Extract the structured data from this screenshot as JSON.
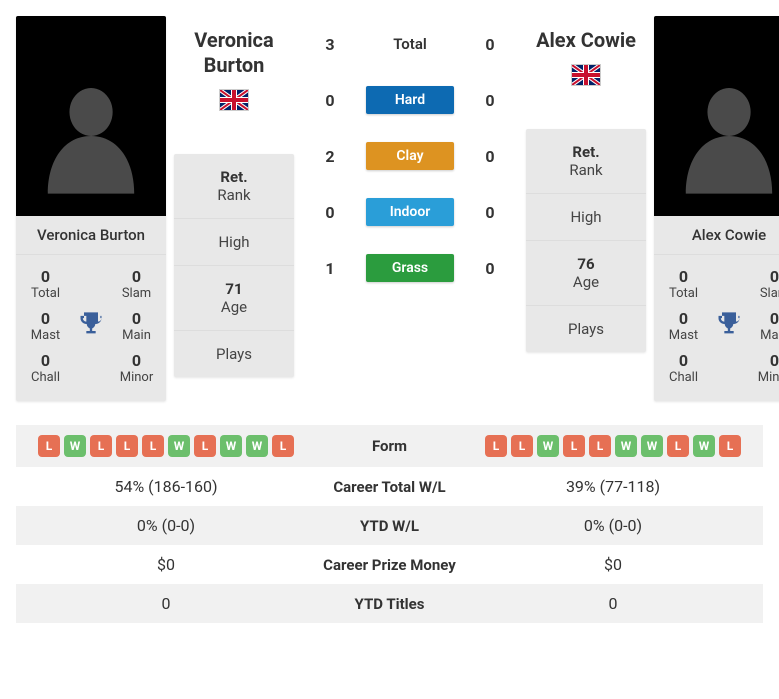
{
  "colors": {
    "card_bg": "#e8e8e8",
    "hard": "#0d6ab2",
    "clay": "#dd9321",
    "indoor": "#2a9ed8",
    "grass": "#2b9c3e",
    "win": "#6cbf6c",
    "loss": "#e67054",
    "trophy": "#3a5f9a",
    "stripe": "#f1f1f1"
  },
  "player_left": {
    "name_lines": [
      "Veronica",
      "Burton"
    ],
    "name_full": "Veronica Burton",
    "flag": "gb",
    "rank_status": "Ret.",
    "rank_label": "Rank",
    "high_label": "High",
    "high_value": "",
    "age_value": "71",
    "age_label": "Age",
    "plays_label": "Plays",
    "plays_value": "",
    "titles": {
      "total": {
        "value": "0",
        "label": "Total"
      },
      "slam": {
        "value": "0",
        "label": "Slam"
      },
      "mast": {
        "value": "0",
        "label": "Mast"
      },
      "main": {
        "value": "0",
        "label": "Main"
      },
      "chall": {
        "value": "0",
        "label": "Chall"
      },
      "minor": {
        "value": "0",
        "label": "Minor"
      }
    }
  },
  "player_right": {
    "name_lines": [
      "Alex Cowie"
    ],
    "name_full": "Alex Cowie",
    "flag": "gb",
    "rank_status": "Ret.",
    "rank_label": "Rank",
    "high_label": "High",
    "high_value": "",
    "age_value": "76",
    "age_label": "Age",
    "plays_label": "Plays",
    "plays_value": "",
    "titles": {
      "total": {
        "value": "0",
        "label": "Total"
      },
      "slam": {
        "value": "0",
        "label": "Slam"
      },
      "mast": {
        "value": "0",
        "label": "Mast"
      },
      "main": {
        "value": "0",
        "label": "Main"
      },
      "chall": {
        "value": "0",
        "label": "Chall"
      },
      "minor": {
        "value": "0",
        "label": "Minor"
      }
    }
  },
  "h2h": {
    "total_label": "Total",
    "surfaces": [
      {
        "key": "hard",
        "label": "Hard"
      },
      {
        "key": "clay",
        "label": "Clay"
      },
      {
        "key": "indoor",
        "label": "Indoor"
      },
      {
        "key": "grass",
        "label": "Grass"
      }
    ],
    "left": {
      "total": "3",
      "hard": "0",
      "clay": "2",
      "indoor": "0",
      "grass": "1"
    },
    "right": {
      "total": "0",
      "hard": "0",
      "clay": "0",
      "indoor": "0",
      "grass": "0"
    }
  },
  "stats": {
    "form_label": "Form",
    "career_wl_label": "Career Total W/L",
    "ytd_wl_label": "YTD W/L",
    "career_prize_label": "Career Prize Money",
    "ytd_titles_label": "YTD Titles",
    "left": {
      "form": [
        "L",
        "W",
        "L",
        "L",
        "L",
        "W",
        "L",
        "W",
        "W",
        "L"
      ],
      "career_wl": "54% (186-160)",
      "ytd_wl": "0% (0-0)",
      "career_prize": "$0",
      "ytd_titles": "0"
    },
    "right": {
      "form": [
        "L",
        "L",
        "W",
        "L",
        "L",
        "W",
        "W",
        "L",
        "W",
        "L"
      ],
      "career_wl": "39% (77-118)",
      "ytd_wl": "0% (0-0)",
      "career_prize": "$0",
      "ytd_titles": "0"
    }
  }
}
